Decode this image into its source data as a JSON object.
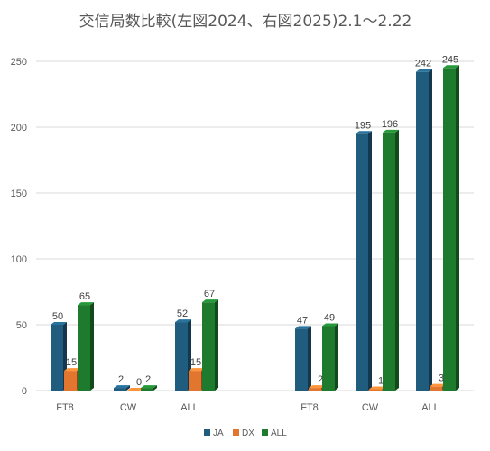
{
  "chart_data": {
    "type": "bar",
    "title": "交信局数比較(左図2024、右図2025)2.1〜2.22",
    "xlabel": "",
    "ylabel": "",
    "ylim": [
      0,
      250
    ],
    "yticks": [
      0,
      50,
      100,
      150,
      200,
      250
    ],
    "grid": true,
    "legend_position": "bottom",
    "categories": [
      "FT8",
      "CW",
      "ALL",
      "FT8",
      "CW",
      "ALL"
    ],
    "series": [
      {
        "name": "JA",
        "color": "#1F5C7E",
        "values": [
          50,
          2,
          52,
          47,
          195,
          242
        ]
      },
      {
        "name": "DX",
        "color": "#E2762F",
        "values": [
          15,
          0,
          15,
          2,
          1,
          3
        ]
      },
      {
        "name": "ALL",
        "color": "#1E7B2E",
        "values": [
          65,
          2,
          67,
          49,
          196,
          245
        ]
      }
    ]
  }
}
